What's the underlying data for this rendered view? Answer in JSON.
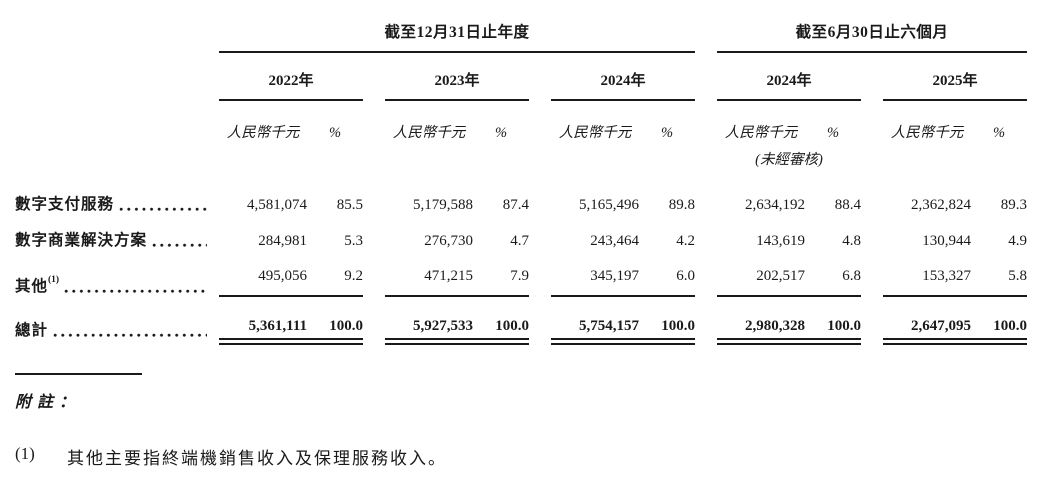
{
  "page": {
    "background": "#ffffff",
    "text_color": "#1a1a1a"
  },
  "table": {
    "group_headers": [
      {
        "label": "截至12月31日止年度"
      },
      {
        "label": "截至6月30日止六個月"
      }
    ],
    "year_columns": [
      "2022年",
      "2023年",
      "2024年",
      "2024年",
      "2025年"
    ],
    "unit_label": "人民幣千元",
    "pct_label": "%",
    "unaudited_note": "(未經審核)",
    "rows": [
      {
        "label": "數字支付服務",
        "sup": "",
        "values": [
          [
            "4,581,074",
            "85.5"
          ],
          [
            "5,179,588",
            "87.4"
          ],
          [
            "5,165,496",
            "89.8"
          ],
          [
            "2,634,192",
            "88.4"
          ],
          [
            "2,362,824",
            "89.3"
          ]
        ]
      },
      {
        "label": "數字商業解決方案",
        "sup": "",
        "values": [
          [
            "284,981",
            "5.3"
          ],
          [
            "276,730",
            "4.7"
          ],
          [
            "243,464",
            "4.2"
          ],
          [
            "143,619",
            "4.8"
          ],
          [
            "130,944",
            "4.9"
          ]
        ]
      },
      {
        "label": "其他",
        "sup": "(1)",
        "values": [
          [
            "495,056",
            "9.2"
          ],
          [
            "471,215",
            "7.9"
          ],
          [
            "345,197",
            "6.0"
          ],
          [
            "202,517",
            "6.8"
          ],
          [
            "153,327",
            "5.8"
          ]
        ]
      }
    ],
    "total_row": {
      "label": "總計",
      "values": [
        [
          "5,361,111",
          "100.0"
        ],
        [
          "5,927,533",
          "100.0"
        ],
        [
          "5,754,157",
          "100.0"
        ],
        [
          "2,980,328",
          "100.0"
        ],
        [
          "2,647,095",
          "100.0"
        ]
      ]
    }
  },
  "footnotes": {
    "header": "附註：",
    "items": [
      {
        "marker": "(1)",
        "text": "其他主要指終端機銷售收入及保理服務收入。"
      }
    ]
  }
}
